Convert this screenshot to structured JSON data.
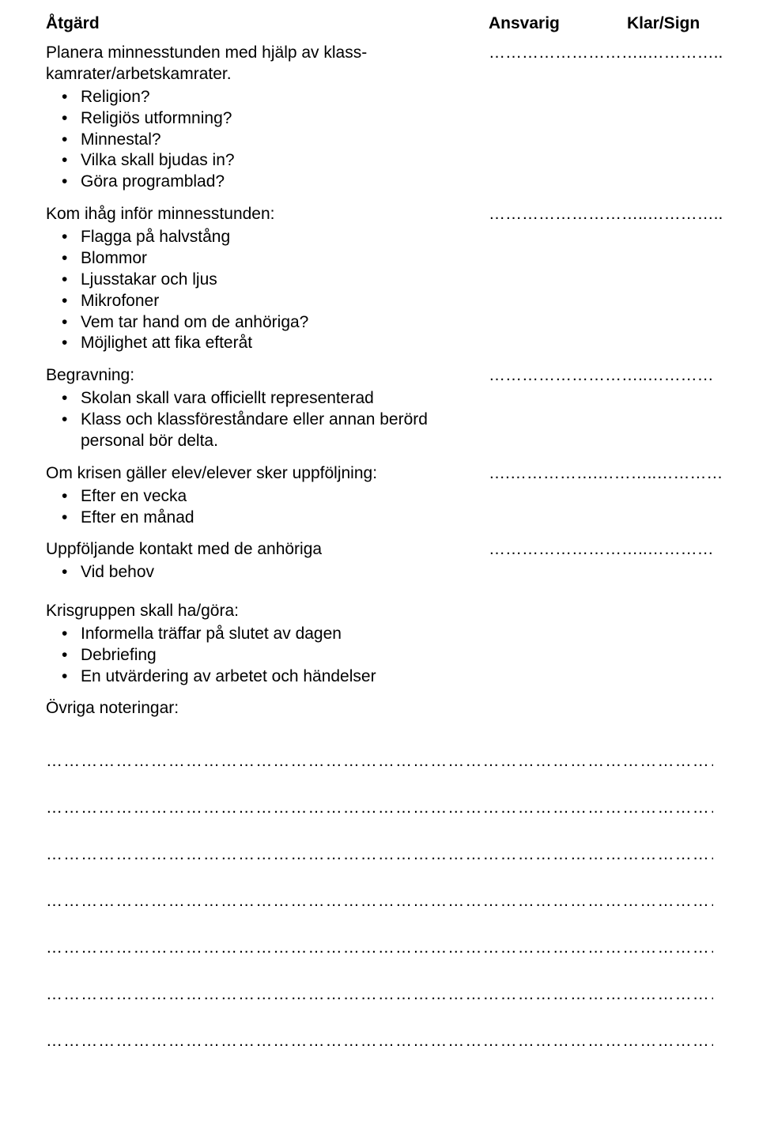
{
  "header": {
    "col1": "Åtgärd",
    "col2": "Ansvarig",
    "col3": "Klar/Sign"
  },
  "sections": [
    {
      "intro": "Planera minnesstunden med hjälp av klass-\nkamrater/arbetskamrater.",
      "bullets": [
        "Religion?",
        "Religiös utformning?",
        "Minnestal?",
        "Vilka skall bjudas in?",
        "Göra programblad?"
      ],
      "resp": "………………………..",
      "sign": "………….."
    },
    {
      "intro": "Kom ihåg inför minnesstunden:",
      "bullets": [
        "Flagga på halvstång",
        "Blommor",
        "Ljusstakar och ljus",
        "Mikrofoner",
        "Vem tar hand om de anhöriga?",
        "Möjlighet att fika efteråt"
      ],
      "resp": "………………………..",
      "sign": "………….."
    },
    {
      "intro": "Begravning:",
      "bullets": [
        "Skolan skall vara officiellt representerad",
        "Klass och klassföreståndare eller annan berörd personal bör delta."
      ],
      "resp": "………………………..",
      "sign": "…………"
    },
    {
      "intro": "Om krisen gäller elev/elever sker uppföljning:",
      "bullets": [
        "Efter en vecka",
        "Efter en månad"
      ],
      "resp": "….…………….………..",
      "sign": "…………"
    },
    {
      "intro": "Uppföljande kontakt med de anhöriga",
      "bullets": [
        "Vid behov"
      ],
      "resp": "………………………..",
      "sign": "…………"
    }
  ],
  "krisgrupp": {
    "intro": "Krisgruppen skall ha/göra:",
    "bullets": [
      "Informella träffar på slutet av dagen",
      "Debriefing",
      "En utvärdering av arbetet och händelser"
    ]
  },
  "ovriga_label": "Övriga noteringar:",
  "dotted_line": "………………………………………………………………………………………………………",
  "dotted_count": 7
}
